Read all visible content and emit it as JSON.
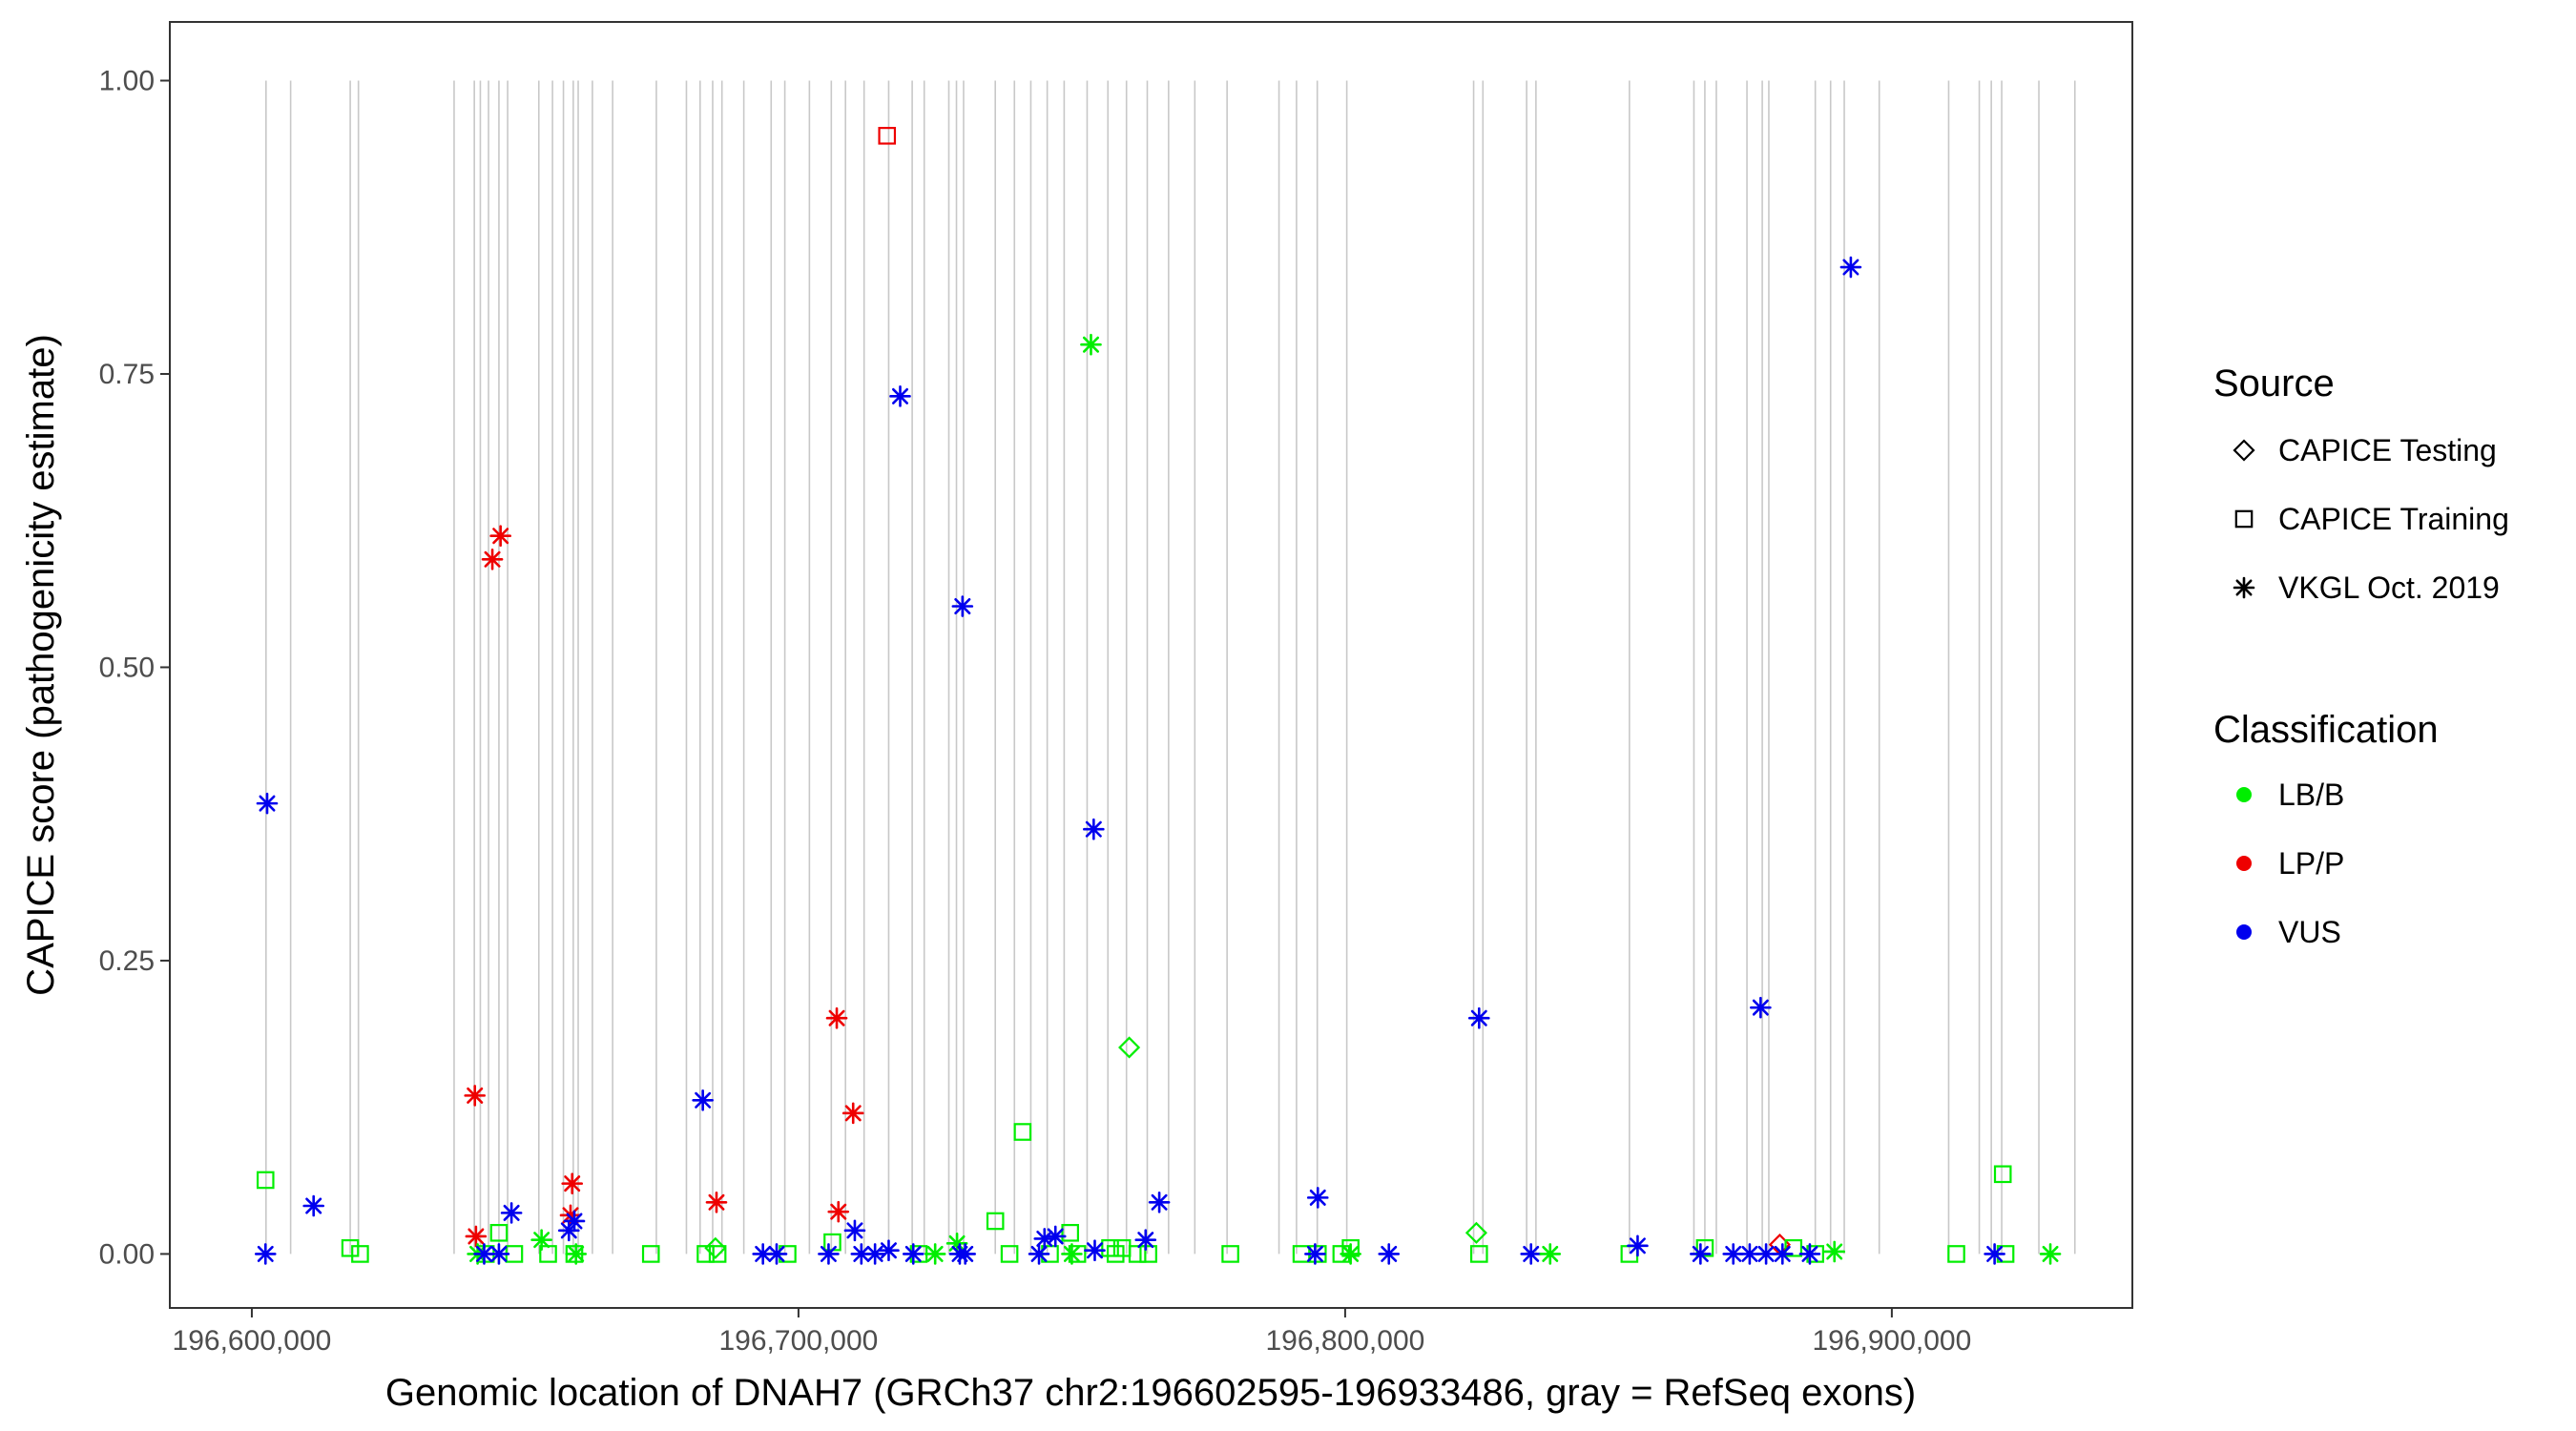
{
  "chart_data": {
    "type": "scatter",
    "title": "",
    "xlabel": "Genomic location of DNAH7 (GRCh37 chr2:196602595-196933486, gray = RefSeq exons)",
    "ylabel": "CAPICE score (pathogenicity estimate)",
    "xlim": [
      196585000,
      196944000
    ],
    "ylim": [
      -0.046,
      1.05
    ],
    "x_ticks": [
      196600000,
      196700000,
      196800000,
      196900000
    ],
    "x_tick_labels": [
      "196,600,000",
      "196,700,000",
      "196,800,000",
      "196,900,000"
    ],
    "y_ticks": [
      0,
      0.25,
      0.5,
      0.75,
      1.0
    ],
    "y_tick_labels": [
      "0.00",
      "0.25",
      "0.50",
      "0.75",
      "1.00"
    ],
    "grid": false,
    "exon_starts": [
      196602595,
      196607100,
      196618000,
      196619500,
      196637000,
      196640700,
      196641800,
      196643300,
      196645200,
      196646800,
      196652500,
      196655000,
      196657000,
      196658800,
      196659700,
      196662300,
      196666000,
      196674000,
      196679500,
      196682000,
      196684300,
      196686000,
      196690000,
      196695000,
      196697500,
      196702000,
      196706000,
      196708600,
      196712000,
      196716500,
      196720800,
      196723000,
      196727500,
      196728900,
      196730200,
      196736000,
      196739500,
      196742500,
      196745500,
      196748600,
      196752800,
      196756600,
      196760000,
      196763800,
      196767700,
      196772500,
      196778400,
      196787900,
      196791100,
      196794900,
      196800300,
      196823500,
      196825200,
      196833200,
      196834900,
      196852000,
      196863800,
      196865800,
      196867900,
      196873500,
      196876300,
      196877500,
      196886000,
      196888800,
      196891300,
      196897700,
      196910400,
      196916000,
      196918200,
      196920100,
      196926900,
      196933486
    ],
    "legend": {
      "source_title": "Source",
      "source_entries": [
        {
          "label": "CAPICE Testing",
          "shape": "diamond"
        },
        {
          "label": "CAPICE Training",
          "shape": "square"
        },
        {
          "label": "VKGL Oct. 2019",
          "shape": "asterisk"
        }
      ],
      "class_title": "Classification",
      "class_entries": [
        {
          "label": "LB/B",
          "color": "#00ee00"
        },
        {
          "label": "LP/P",
          "color": "#ee0000"
        },
        {
          "label": "VUS",
          "color": "#0000ee"
        }
      ],
      "position": "right"
    },
    "colors": {
      "LB/B": "#00ee00",
      "LP/P": "#ee0000",
      "VUS": "#0000ee",
      "exon": "#c8c8c8"
    },
    "series": [
      {
        "name": "CAPICE Testing",
        "shape": "diamond",
        "points": [
          {
            "x": 196684800,
            "y": 0.005,
            "c": "LB/B"
          },
          {
            "x": 196760500,
            "y": 0.176,
            "c": "LB/B"
          },
          {
            "x": 196824000,
            "y": 0.018,
            "c": "LB/B"
          },
          {
            "x": 196879500,
            "y": 0.008,
            "c": "LP/P"
          }
        ]
      },
      {
        "name": "CAPICE Training",
        "shape": "square",
        "points": [
          {
            "x": 196602500,
            "y": 0.063,
            "c": "LB/B"
          },
          {
            "x": 196618000,
            "y": 0.005,
            "c": "LB/B"
          },
          {
            "x": 196619800,
            "y": 0.0,
            "c": "LB/B"
          },
          {
            "x": 196642800,
            "y": 0.0,
            "c": "LB/B"
          },
          {
            "x": 196645200,
            "y": 0.018,
            "c": "LB/B"
          },
          {
            "x": 196648000,
            "y": 0.0,
            "c": "LB/B"
          },
          {
            "x": 196654200,
            "y": 0.0,
            "c": "LB/B"
          },
          {
            "x": 196659000,
            "y": 0.0,
            "c": "LB/B"
          },
          {
            "x": 196673000,
            "y": 0.0,
            "c": "LB/B"
          },
          {
            "x": 196683000,
            "y": 0.0,
            "c": "LB/B"
          },
          {
            "x": 196685200,
            "y": 0.0,
            "c": "LB/B"
          },
          {
            "x": 196698000,
            "y": 0.0,
            "c": "LB/B"
          },
          {
            "x": 196706200,
            "y": 0.01,
            "c": "LB/B"
          },
          {
            "x": 196716200,
            "y": 0.953,
            "c": "LP/P"
          },
          {
            "x": 196722000,
            "y": 0.0,
            "c": "LB/B"
          },
          {
            "x": 196736000,
            "y": 0.028,
            "c": "LB/B"
          },
          {
            "x": 196738600,
            "y": 0.0,
            "c": "LB/B"
          },
          {
            "x": 196741000,
            "y": 0.104,
            "c": "LB/B"
          },
          {
            "x": 196746000,
            "y": 0.0,
            "c": "LB/B"
          },
          {
            "x": 196749700,
            "y": 0.018,
            "c": "LB/B"
          },
          {
            "x": 196751000,
            "y": 0.0,
            "c": "LB/B"
          },
          {
            "x": 196757000,
            "y": 0.005,
            "c": "LB/B"
          },
          {
            "x": 196758000,
            "y": 0.0,
            "c": "LB/B"
          },
          {
            "x": 196759200,
            "y": 0.005,
            "c": "LB/B"
          },
          {
            "x": 196762000,
            "y": 0.0,
            "c": "LB/B"
          },
          {
            "x": 196764000,
            "y": 0.0,
            "c": "LB/B"
          },
          {
            "x": 196779000,
            "y": 0.0,
            "c": "LB/B"
          },
          {
            "x": 196792000,
            "y": 0.0,
            "c": "LB/B"
          },
          {
            "x": 196795000,
            "y": 0.0,
            "c": "LB/B"
          },
          {
            "x": 196799300,
            "y": 0.0,
            "c": "LB/B"
          },
          {
            "x": 196801000,
            "y": 0.005,
            "c": "LB/B"
          },
          {
            "x": 196824500,
            "y": 0.0,
            "c": "LB/B"
          },
          {
            "x": 196852000,
            "y": 0.0,
            "c": "LB/B"
          },
          {
            "x": 196865800,
            "y": 0.005,
            "c": "LB/B"
          },
          {
            "x": 196882000,
            "y": 0.005,
            "c": "LB/B"
          },
          {
            "x": 196886000,
            "y": 0.0,
            "c": "LB/B"
          },
          {
            "x": 196911800,
            "y": 0.0,
            "c": "LB/B"
          },
          {
            "x": 196920300,
            "y": 0.068,
            "c": "LB/B"
          },
          {
            "x": 196920800,
            "y": 0.0,
            "c": "LB/B"
          }
        ]
      },
      {
        "name": "VKGL Oct. 2019",
        "shape": "asterisk",
        "points": [
          {
            "x": 196602800,
            "y": 0.384,
            "c": "VUS"
          },
          {
            "x": 196602500,
            "y": 0.0,
            "c": "VUS"
          },
          {
            "x": 196611300,
            "y": 0.041,
            "c": "VUS"
          },
          {
            "x": 196640800,
            "y": 0.135,
            "c": "LP/P"
          },
          {
            "x": 196641000,
            "y": 0.015,
            "c": "LP/P"
          },
          {
            "x": 196641300,
            "y": 0.0,
            "c": "LB/B"
          },
          {
            "x": 196642500,
            "y": 0.0,
            "c": "VUS"
          },
          {
            "x": 196644000,
            "y": 0.592,
            "c": "LP/P"
          },
          {
            "x": 196645500,
            "y": 0.612,
            "c": "LP/P"
          },
          {
            "x": 196645200,
            "y": 0.0,
            "c": "VUS"
          },
          {
            "x": 196647500,
            "y": 0.035,
            "c": "VUS"
          },
          {
            "x": 196653000,
            "y": 0.012,
            "c": "LB/B"
          },
          {
            "x": 196658000,
            "y": 0.02,
            "c": "VUS"
          },
          {
            "x": 196658300,
            "y": 0.033,
            "c": "LP/P"
          },
          {
            "x": 196658600,
            "y": 0.06,
            "c": "LP/P"
          },
          {
            "x": 196659000,
            "y": 0.028,
            "c": "VUS"
          },
          {
            "x": 196659300,
            "y": 0.0,
            "c": "LB/B"
          },
          {
            "x": 196682500,
            "y": 0.131,
            "c": "VUS"
          },
          {
            "x": 196685000,
            "y": 0.044,
            "c": "LP/P"
          },
          {
            "x": 196693500,
            "y": 0.0,
            "c": "VUS"
          },
          {
            "x": 196696000,
            "y": 0.0,
            "c": "VUS"
          },
          {
            "x": 196705500,
            "y": 0.0,
            "c": "VUS"
          },
          {
            "x": 196707000,
            "y": 0.201,
            "c": "LP/P"
          },
          {
            "x": 196707300,
            "y": 0.036,
            "c": "LP/P"
          },
          {
            "x": 196710000,
            "y": 0.12,
            "c": "LP/P"
          },
          {
            "x": 196710300,
            "y": 0.02,
            "c": "VUS"
          },
          {
            "x": 196711500,
            "y": 0.0,
            "c": "VUS"
          },
          {
            "x": 196714000,
            "y": 0.0,
            "c": "VUS"
          },
          {
            "x": 196716500,
            "y": 0.003,
            "c": "VUS"
          },
          {
            "x": 196718600,
            "y": 0.731,
            "c": "VUS"
          },
          {
            "x": 196721000,
            "y": 0.0,
            "c": "VUS"
          },
          {
            "x": 196725000,
            "y": 0.0,
            "c": "LB/B"
          },
          {
            "x": 196729000,
            "y": 0.009,
            "c": "LB/B"
          },
          {
            "x": 196730000,
            "y": 0.552,
            "c": "VUS"
          },
          {
            "x": 196729500,
            "y": 0.0,
            "c": "VUS"
          },
          {
            "x": 196730500,
            "y": 0.0,
            "c": "VUS"
          },
          {
            "x": 196744000,
            "y": 0.0,
            "c": "VUS"
          },
          {
            "x": 196745000,
            "y": 0.013,
            "c": "VUS"
          },
          {
            "x": 196747000,
            "y": 0.015,
            "c": "VUS"
          },
          {
            "x": 196750000,
            "y": 0.0,
            "c": "LB/B"
          },
          {
            "x": 196753500,
            "y": 0.775,
            "c": "LB/B"
          },
          {
            "x": 196754000,
            "y": 0.362,
            "c": "VUS"
          },
          {
            "x": 196754200,
            "y": 0.003,
            "c": "VUS"
          },
          {
            "x": 196763500,
            "y": 0.012,
            "c": "VUS"
          },
          {
            "x": 196766000,
            "y": 0.044,
            "c": "VUS"
          },
          {
            "x": 196795000,
            "y": 0.048,
            "c": "VUS"
          },
          {
            "x": 196794500,
            "y": 0.0,
            "c": "VUS"
          },
          {
            "x": 196801000,
            "y": 0.0,
            "c": "LB/B"
          },
          {
            "x": 196808000,
            "y": 0.0,
            "c": "VUS"
          },
          {
            "x": 196824500,
            "y": 0.201,
            "c": "VUS"
          },
          {
            "x": 196834000,
            "y": 0.0,
            "c": "VUS"
          },
          {
            "x": 196837500,
            "y": 0.0,
            "c": "LB/B"
          },
          {
            "x": 196853500,
            "y": 0.007,
            "c": "VUS"
          },
          {
            "x": 196865000,
            "y": 0.0,
            "c": "VUS"
          },
          {
            "x": 196871000,
            "y": 0.0,
            "c": "VUS"
          },
          {
            "x": 196874000,
            "y": 0.0,
            "c": "VUS"
          },
          {
            "x": 196876000,
            "y": 0.21,
            "c": "VUS"
          },
          {
            "x": 196877000,
            "y": 0.0,
            "c": "VUS"
          },
          {
            "x": 196880000,
            "y": 0.0,
            "c": "VUS"
          },
          {
            "x": 196885000,
            "y": 0.0,
            "c": "VUS"
          },
          {
            "x": 196889500,
            "y": 0.002,
            "c": "LB/B"
          },
          {
            "x": 196892500,
            "y": 0.841,
            "c": "VUS"
          },
          {
            "x": 196918800,
            "y": 0.0,
            "c": "VUS"
          },
          {
            "x": 196929000,
            "y": 0.0,
            "c": "LB/B"
          }
        ]
      }
    ]
  }
}
